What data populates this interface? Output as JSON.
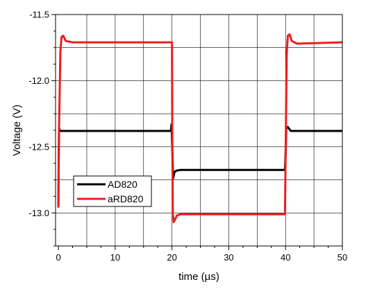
{
  "chart_data": {
    "type": "line",
    "xlabel": "time (µs)",
    "ylabel": "Voltage (V)",
    "xlim": [
      -0.5,
      50
    ],
    "ylim": [
      -13.25,
      -11.5
    ],
    "xticks": [
      0,
      10,
      20,
      30,
      40,
      50
    ],
    "yticks": [
      -11.5,
      -12.0,
      -12.5,
      -13.0
    ],
    "ytick_labels": [
      "-11.5",
      "-12.0",
      "-12.5",
      "-13.0"
    ],
    "grid": true,
    "legend_position": "bottom-left",
    "series": [
      {
        "name": "AD820",
        "color": "#000000",
        "x": [
          0,
          0.05,
          0.12,
          0.3,
          0.8,
          19.8,
          19.92,
          20.0,
          20.08,
          20.2,
          20.45,
          20.8,
          21.5,
          39.7,
          39.9,
          40.05,
          40.12,
          40.4,
          40.9,
          50
        ],
        "y": [
          -12.95,
          -12.6,
          -12.36,
          -12.38,
          -12.38,
          -12.38,
          -12.33,
          -12.45,
          -12.55,
          -12.74,
          -12.69,
          -12.68,
          -12.675,
          -12.675,
          -12.675,
          -12.5,
          -12.36,
          -12.35,
          -12.38,
          -12.38
        ]
      },
      {
        "name": "aRD820",
        "color": "#ee1c1c",
        "x": [
          0,
          0.1,
          0.35,
          0.55,
          0.85,
          1.3,
          2.5,
          20.0,
          20.05,
          20.15,
          20.3,
          20.55,
          20.85,
          21.5,
          22.5,
          39.9,
          40.05,
          40.2,
          40.4,
          40.7,
          41.1,
          42.0,
          50
        ],
        "y": [
          -12.96,
          -12.4,
          -11.78,
          -11.67,
          -11.66,
          -11.7,
          -11.71,
          -11.71,
          -12.4,
          -13.01,
          -13.07,
          -13.05,
          -13.02,
          -13.01,
          -13.01,
          -13.01,
          -12.4,
          -11.8,
          -11.66,
          -11.65,
          -11.7,
          -11.72,
          -11.71
        ]
      }
    ]
  }
}
